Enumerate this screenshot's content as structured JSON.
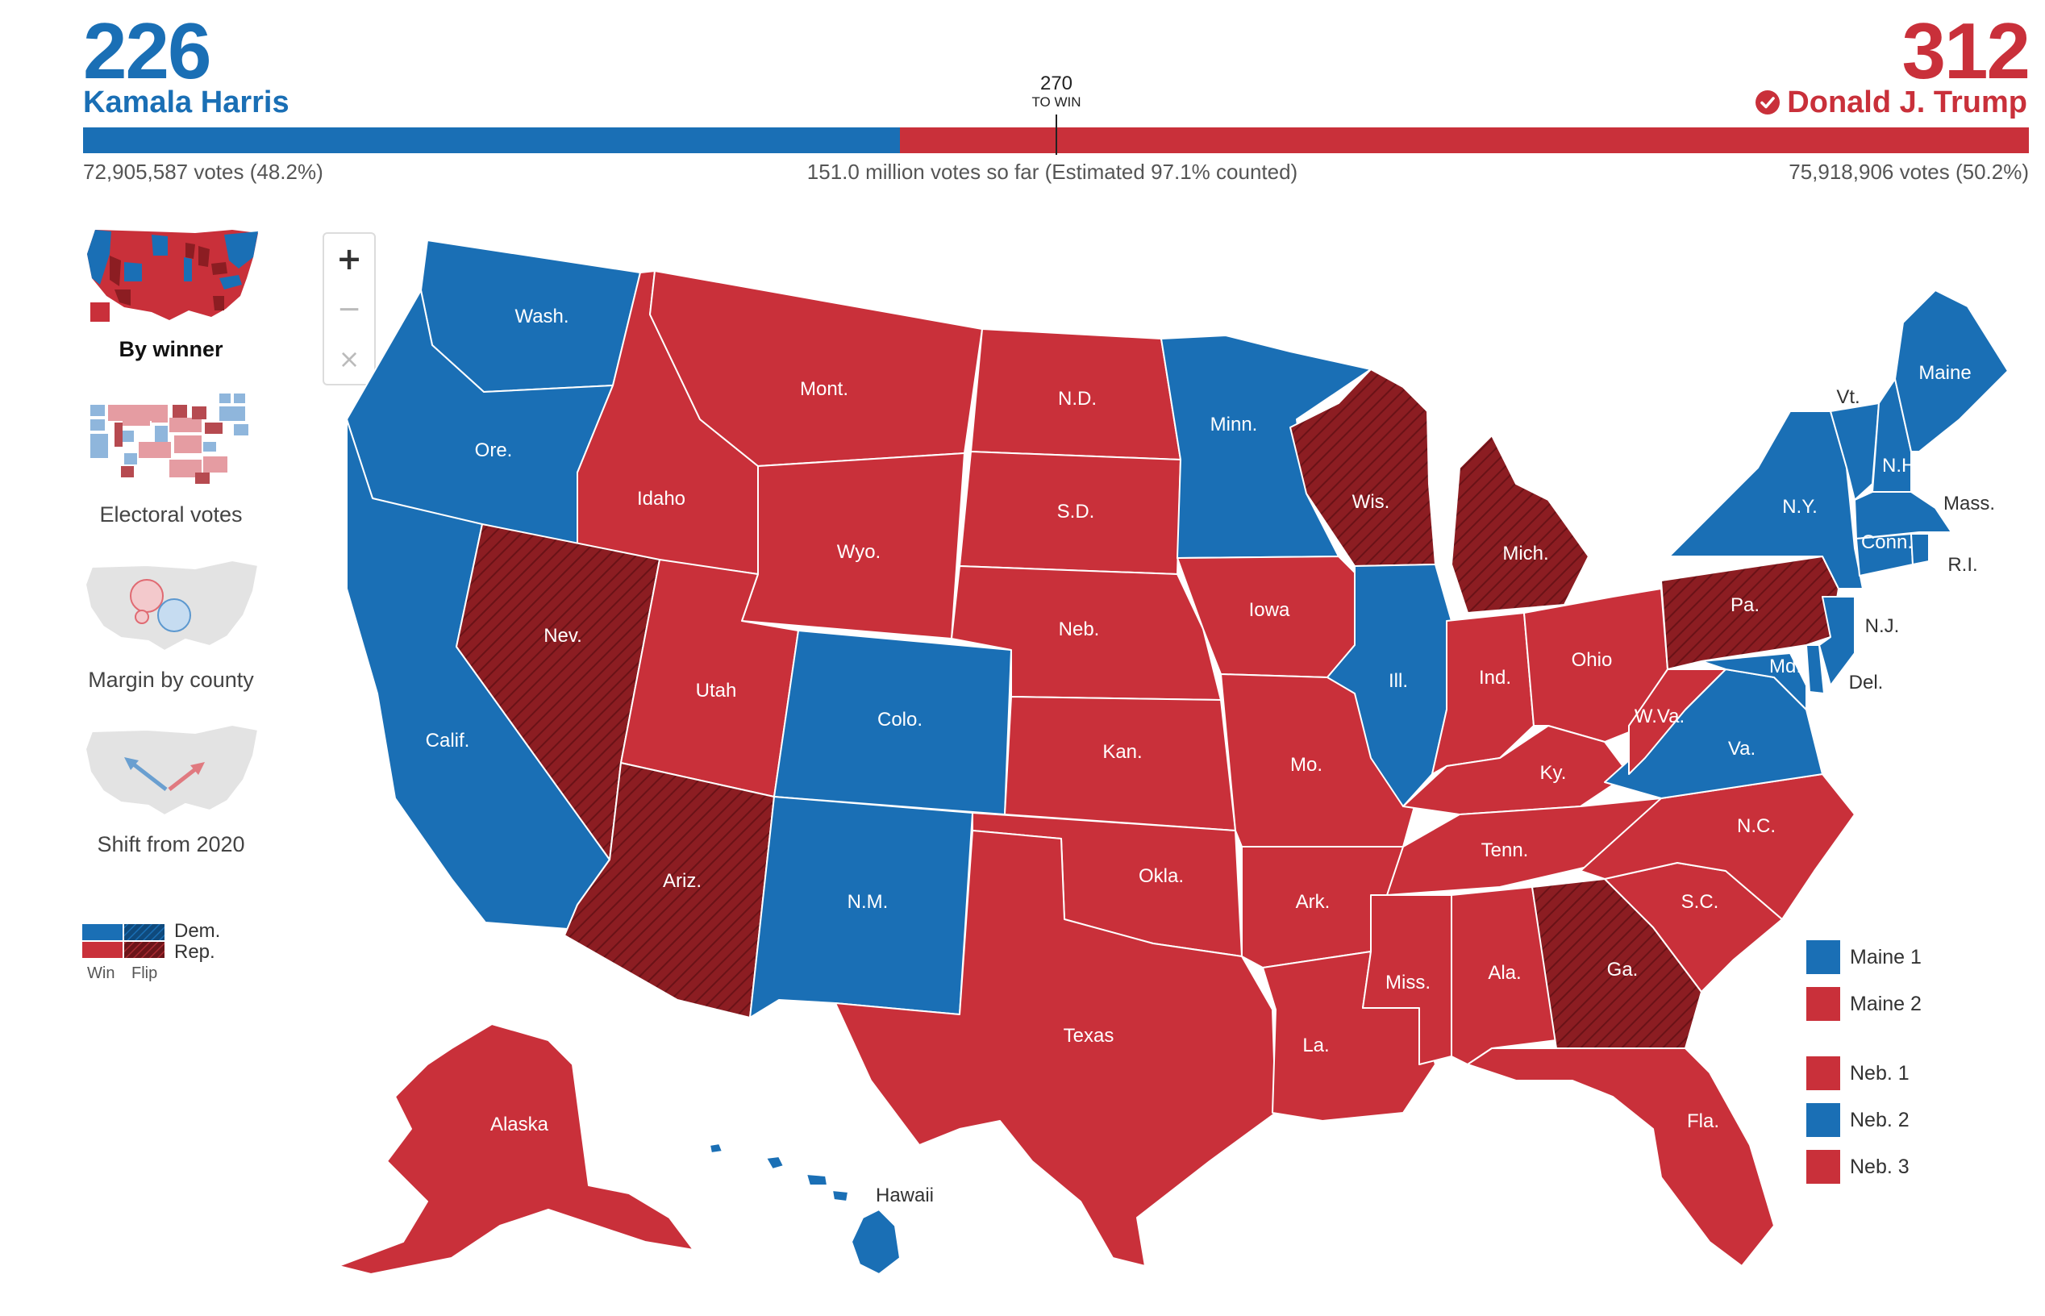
{
  "header": {
    "dem": {
      "electoral_votes": "226",
      "name": "Kamala Harris",
      "votes": "72,905,587 votes (48.2%)",
      "color": "#1a6fb5",
      "share": 48.2
    },
    "rep": {
      "electoral_votes": "312",
      "name": "Donald J. Trump",
      "votes": "75,918,906 votes (50.2%)",
      "color": "#c9303a",
      "winner_icon": "check-circle-icon",
      "share": 50.2
    },
    "threshold": {
      "number": "270",
      "label": "TO WIN"
    },
    "total_votes": "151.0 million votes so far (Estimated 97.1% counted)"
  },
  "view_options": [
    {
      "label": "By winner",
      "selected": true,
      "icon": "us-map-winner-thumbnail"
    },
    {
      "label": "Electoral votes",
      "selected": false,
      "icon": "electoral-cartogram-thumbnail"
    },
    {
      "label": "Margin by county",
      "selected": false,
      "icon": "bubble-map-thumbnail"
    },
    {
      "label": "Shift from 2020",
      "selected": false,
      "icon": "shift-arrows-thumbnail"
    }
  ],
  "key": {
    "dem": "Dem.",
    "rep": "Rep.",
    "win": "Win",
    "flip": "Flip"
  },
  "zoom": {
    "in": "+",
    "out": "−",
    "reset": "×",
    "icons": [
      "zoom-in-icon",
      "zoom-out-icon",
      "reset-icon"
    ]
  },
  "colors": {
    "dem": "#1a6fb5",
    "rep": "#c9303a",
    "rep_flip": "#8c1d22",
    "border": "#ffffff"
  },
  "map": {
    "states": [
      {
        "label": "Wash.",
        "winner": "dem",
        "flip": false
      },
      {
        "label": "Ore.",
        "winner": "dem",
        "flip": false
      },
      {
        "label": "Calif.",
        "winner": "dem",
        "flip": false
      },
      {
        "label": "Idaho",
        "winner": "rep",
        "flip": false
      },
      {
        "label": "Nev.",
        "winner": "rep",
        "flip": true
      },
      {
        "label": "Mont.",
        "winner": "rep",
        "flip": false
      },
      {
        "label": "Wyo.",
        "winner": "rep",
        "flip": false
      },
      {
        "label": "Utah",
        "winner": "rep",
        "flip": false
      },
      {
        "label": "Ariz.",
        "winner": "rep",
        "flip": true
      },
      {
        "label": "Colo.",
        "winner": "dem",
        "flip": false
      },
      {
        "label": "N.M.",
        "winner": "dem",
        "flip": false
      },
      {
        "label": "N.D.",
        "winner": "rep",
        "flip": false
      },
      {
        "label": "S.D.",
        "winner": "rep",
        "flip": false
      },
      {
        "label": "Neb.",
        "winner": "rep",
        "flip": false
      },
      {
        "label": "Kan.",
        "winner": "rep",
        "flip": false
      },
      {
        "label": "Okla.",
        "winner": "rep",
        "flip": false
      },
      {
        "label": "Texas",
        "winner": "rep",
        "flip": false
      },
      {
        "label": "Minn.",
        "winner": "dem",
        "flip": false
      },
      {
        "label": "Iowa",
        "winner": "rep",
        "flip": false
      },
      {
        "label": "Mo.",
        "winner": "rep",
        "flip": false
      },
      {
        "label": "Ark.",
        "winner": "rep",
        "flip": false
      },
      {
        "label": "La.",
        "winner": "rep",
        "flip": false
      },
      {
        "label": "Wis.",
        "winner": "rep",
        "flip": true
      },
      {
        "label": "Ill.",
        "winner": "dem",
        "flip": false
      },
      {
        "label": "Mich.",
        "winner": "rep",
        "flip": true
      },
      {
        "label": "Ind.",
        "winner": "rep",
        "flip": false
      },
      {
        "label": "Ohio",
        "winner": "rep",
        "flip": false
      },
      {
        "label": "Ky.",
        "winner": "rep",
        "flip": false
      },
      {
        "label": "Tenn.",
        "winner": "rep",
        "flip": false
      },
      {
        "label": "Miss.",
        "winner": "rep",
        "flip": false
      },
      {
        "label": "Ala.",
        "winner": "rep",
        "flip": false
      },
      {
        "label": "Ga.",
        "winner": "rep",
        "flip": true
      },
      {
        "label": "Fla.",
        "winner": "rep",
        "flip": false
      },
      {
        "label": "S.C.",
        "winner": "rep",
        "flip": false
      },
      {
        "label": "N.C.",
        "winner": "rep",
        "flip": false
      },
      {
        "label": "Va.",
        "winner": "dem",
        "flip": false
      },
      {
        "label": "W.Va.",
        "winner": "rep",
        "flip": false
      },
      {
        "label": "Pa.",
        "winner": "rep",
        "flip": true
      },
      {
        "label": "N.Y.",
        "winner": "dem",
        "flip": false
      },
      {
        "label": "Vt.",
        "winner": "dem",
        "flip": false
      },
      {
        "label": "N.H.",
        "winner": "dem",
        "flip": false
      },
      {
        "label": "Maine",
        "winner": "dem",
        "flip": false
      },
      {
        "label": "Mass.",
        "winner": "dem",
        "flip": false
      },
      {
        "label": "Conn.",
        "winner": "dem",
        "flip": false
      },
      {
        "label": "R.I.",
        "winner": "dem",
        "flip": false
      },
      {
        "label": "N.J.",
        "winner": "dem",
        "flip": false
      },
      {
        "label": "Del.",
        "winner": "dem",
        "flip": false
      },
      {
        "label": "Md.",
        "winner": "dem",
        "flip": false
      },
      {
        "label": "Alaska",
        "winner": "rep",
        "flip": false
      },
      {
        "label": "Hawaii",
        "winner": "dem",
        "flip": false
      }
    ]
  },
  "districts": [
    {
      "label": "Maine 1",
      "winner": "dem"
    },
    {
      "label": "Maine 2",
      "winner": "rep"
    },
    {
      "label": "Neb. 1",
      "winner": "rep"
    },
    {
      "label": "Neb. 2",
      "winner": "dem"
    },
    {
      "label": "Neb. 3",
      "winner": "rep"
    }
  ]
}
